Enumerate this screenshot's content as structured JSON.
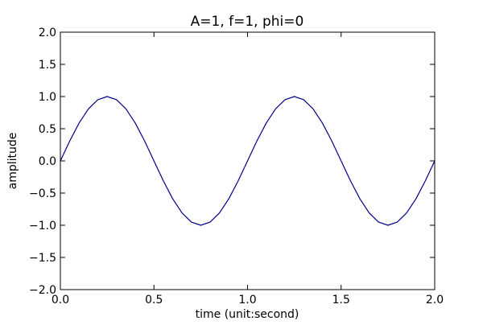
{
  "chart_data": {
    "type": "line",
    "title": "A=1, f=1, phi=0",
    "xlabel": "time (unit:second)",
    "ylabel": "amplitude",
    "xlim": [
      0.0,
      2.0
    ],
    "ylim": [
      -2.0,
      2.0
    ],
    "xticks": [
      0.0,
      0.5,
      1.0,
      1.5,
      2.0
    ],
    "xtick_labels": [
      "0.0",
      "0.5",
      "1.0",
      "1.5",
      "2.0"
    ],
    "yticks": [
      2.0,
      1.5,
      1.0,
      0.5,
      0.0,
      -0.5,
      -1.0,
      -1.5,
      -2.0
    ],
    "ytick_labels": [
      "2.0",
      "1.5",
      "1.0",
      "0.5",
      "0.0",
      "−0.5",
      "−1.0",
      "−1.5",
      "−2.0"
    ],
    "grid": false,
    "series": [
      {
        "color": "#00008b",
        "x": [
          0.0,
          0.05,
          0.1,
          0.15,
          0.2,
          0.25,
          0.3,
          0.35,
          0.4,
          0.45,
          0.5,
          0.55,
          0.6,
          0.65,
          0.7,
          0.75,
          0.8,
          0.85,
          0.9,
          0.95,
          1.0,
          1.05,
          1.1,
          1.15,
          1.2,
          1.25,
          1.3,
          1.35,
          1.4,
          1.45,
          1.5,
          1.55,
          1.6,
          1.65,
          1.7,
          1.75,
          1.8,
          1.85,
          1.9,
          1.95,
          2.0
        ],
        "y": [
          0.0,
          0.309,
          0.588,
          0.809,
          0.951,
          1.0,
          0.951,
          0.809,
          0.588,
          0.309,
          0.0,
          -0.309,
          -0.588,
          -0.809,
          -0.951,
          -1.0,
          -0.951,
          -0.809,
          -0.588,
          -0.309,
          0.0,
          0.309,
          0.588,
          0.809,
          0.951,
          1.0,
          0.951,
          0.809,
          0.588,
          0.309,
          0.0,
          -0.309,
          -0.588,
          -0.809,
          -0.951,
          -1.0,
          -0.951,
          -0.809,
          -0.588,
          -0.309,
          0.0
        ]
      }
    ]
  }
}
